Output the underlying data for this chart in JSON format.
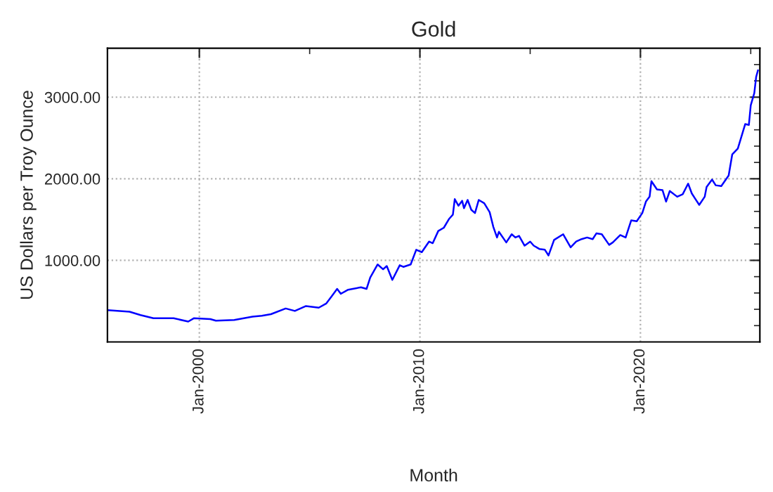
{
  "chart_data": {
    "type": "line",
    "title": "Gold",
    "xlabel": "Month",
    "ylabel": "US Dollars per Troy Ounce",
    "x": [
      "1995-11",
      "1996-11",
      "1997-05",
      "1997-12",
      "1998-11",
      "1999-07",
      "1999-10",
      "2000-07",
      "2000-10",
      "2001-08",
      "2002-06",
      "2002-11",
      "2003-04",
      "2003-12",
      "2004-05",
      "2004-11",
      "2005-06",
      "2005-10",
      "2006-01",
      "2006-04",
      "2006-06",
      "2006-10",
      "2007-05",
      "2007-08",
      "2007-10",
      "2008-02",
      "2008-05",
      "2008-07",
      "2008-10",
      "2009-02",
      "2009-04",
      "2009-08",
      "2009-11",
      "2010-02",
      "2010-06",
      "2010-08",
      "2010-11",
      "2011-02",
      "2011-05",
      "2011-07",
      "2011-08",
      "2011-10",
      "2011-12",
      "2012-01",
      "2012-03",
      "2012-05",
      "2012-07",
      "2012-09",
      "2012-12",
      "2013-03",
      "2013-05",
      "2013-07",
      "2013-08",
      "2013-12",
      "2014-03",
      "2014-05",
      "2014-07",
      "2014-10",
      "2015-01",
      "2015-03",
      "2015-06",
      "2015-09",
      "2015-11",
      "2016-02",
      "2016-07",
      "2016-11",
      "2017-02",
      "2017-05",
      "2017-08",
      "2017-11",
      "2018-01",
      "2018-04",
      "2018-08",
      "2018-10",
      "2019-02",
      "2019-05",
      "2019-08",
      "2019-11",
      "2020-02",
      "2020-04",
      "2020-06",
      "2020-07",
      "2020-10",
      "2021-01",
      "2021-03",
      "2021-05",
      "2021-09",
      "2021-12",
      "2022-03",
      "2022-05",
      "2022-07",
      "2022-09",
      "2022-12",
      "2023-01",
      "2023-04",
      "2023-06",
      "2023-09",
      "2024-01",
      "2024-03",
      "2024-06",
      "2024-10",
      "2024-12",
      "2025-01",
      "2025-03",
      "2025-04",
      "2025-05"
    ],
    "series": [
      {
        "color": "#0000ff",
        "values": [
          390,
          370,
          330,
          290,
          290,
          250,
          290,
          280,
          260,
          270,
          310,
          320,
          340,
          410,
          380,
          440,
          420,
          470,
          560,
          650,
          590,
          640,
          670,
          650,
          790,
          950,
          890,
          930,
          760,
          940,
          920,
          950,
          1130,
          1100,
          1230,
          1210,
          1360,
          1400,
          1510,
          1560,
          1750,
          1670,
          1730,
          1640,
          1740,
          1620,
          1580,
          1740,
          1700,
          1590,
          1410,
          1280,
          1350,
          1220,
          1320,
          1280,
          1300,
          1180,
          1230,
          1180,
          1140,
          1130,
          1060,
          1250,
          1320,
          1160,
          1230,
          1260,
          1280,
          1260,
          1330,
          1320,
          1190,
          1220,
          1310,
          1280,
          1490,
          1480,
          1580,
          1720,
          1780,
          1970,
          1870,
          1860,
          1720,
          1850,
          1780,
          1810,
          1940,
          1820,
          1750,
          1680,
          1780,
          1900,
          1990,
          1920,
          1910,
          2040,
          2300,
          2370,
          2670,
          2660,
          2900,
          3050,
          3250,
          3330
        ]
      }
    ],
    "xlim": [
      "1995-11",
      "2025-06"
    ],
    "xticks": [
      {
        "value": "2000-01",
        "label": "Jan-2000"
      },
      {
        "value": "2005-01",
        "label": null
      },
      {
        "value": "2010-01",
        "label": "Jan-2010"
      },
      {
        "value": "2015-01",
        "label": null
      },
      {
        "value": "2020-01",
        "label": "Jan-2020"
      },
      {
        "value": "2025-01",
        "label": null
      }
    ],
    "ylim": [
      0,
      3600
    ],
    "yticks": [
      {
        "value": 200,
        "label": null
      },
      {
        "value": 400,
        "label": null
      },
      {
        "value": 600,
        "label": null
      },
      {
        "value": 800,
        "label": null
      },
      {
        "value": 1000,
        "label": "1000.00"
      },
      {
        "value": 1200,
        "label": null
      },
      {
        "value": 1400,
        "label": null
      },
      {
        "value": 1600,
        "label": null
      },
      {
        "value": 1800,
        "label": null
      },
      {
        "value": 2000,
        "label": "2000.00"
      },
      {
        "value": 2200,
        "label": null
      },
      {
        "value": 2400,
        "label": null
      },
      {
        "value": 2600,
        "label": null
      },
      {
        "value": 2800,
        "label": null
      },
      {
        "value": 3000,
        "label": "3000.00"
      },
      {
        "value": 3200,
        "label": null
      },
      {
        "value": 3400,
        "label": null
      }
    ],
    "grid": true,
    "legend": false
  }
}
